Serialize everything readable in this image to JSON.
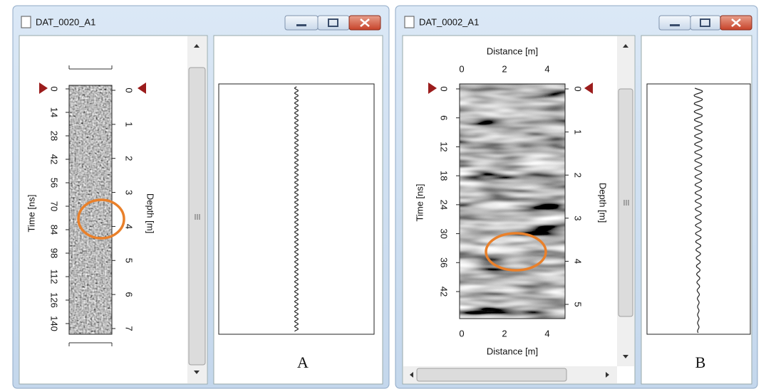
{
  "windows": [
    {
      "title": "DAT_0020_A1",
      "time_axis": {
        "label": "Time [ns]",
        "ticks": [
          "0",
          "14",
          "28",
          "42",
          "56",
          "70",
          "84",
          "98",
          "112",
          "126",
          "140"
        ]
      },
      "depth_axis": {
        "label": "Depth [m]",
        "ticks": [
          "0",
          "1",
          "2",
          "3",
          "4",
          "5",
          "6",
          "7"
        ]
      },
      "panel_label": "A"
    },
    {
      "title": "DAT_0002_A1",
      "distance_axis": {
        "label": "Distance [m]",
        "ticks": [
          "0",
          "2",
          "4"
        ]
      },
      "time_axis": {
        "label": "Time [ns]",
        "ticks": [
          "0",
          "6",
          "12",
          "18",
          "24",
          "30",
          "36",
          "42"
        ]
      },
      "depth_axis": {
        "label": "Depth [m]",
        "ticks": [
          "0",
          "1",
          "2",
          "3",
          "4",
          "5"
        ]
      },
      "panel_label": "B"
    }
  ]
}
